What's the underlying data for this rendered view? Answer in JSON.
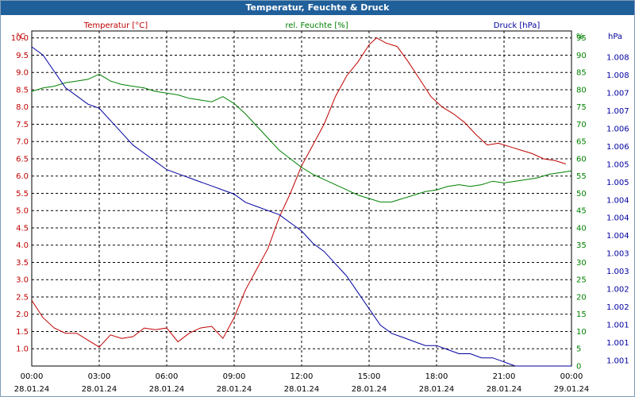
{
  "title": "Temperatur, Feuchte & Druck",
  "colors": {
    "title_bg": "#1f5f9a",
    "temperature": "#c00000",
    "humidity": "#008000",
    "pressure": "#0000a0",
    "grid": "#000000"
  },
  "axis_units": {
    "left": "°C",
    "right1": "%",
    "right2": "hPa"
  },
  "legend": {
    "temperature": "Temperatur [°C]",
    "humidity": "rel. Feuchte [%]",
    "pressure": "Druck [hPa]"
  },
  "chart_data": {
    "type": "line",
    "title": "Temperatur, Feuchte & Druck",
    "grid": true,
    "x_labels": [
      {
        "time": "00:00",
        "date": "28.01.24"
      },
      {
        "time": "03:00",
        "date": "28.01.24"
      },
      {
        "time": "06:00",
        "date": "28.01.24"
      },
      {
        "time": "09:00",
        "date": "28.01.24"
      },
      {
        "time": "12:00",
        "date": "28.01.24"
      },
      {
        "time": "15:00",
        "date": "28.01.24"
      },
      {
        "time": "18:00",
        "date": "28.01.24"
      },
      {
        "time": "21:00",
        "date": "28.01.24"
      },
      {
        "time": "00:00",
        "date": "29.01.24"
      }
    ],
    "x_range": [
      "28.01.24 00:00",
      "29.01.24 00:00"
    ],
    "y_left": {
      "unit": "°C",
      "range": [
        0.5,
        10.2
      ],
      "ticks": [
        "1.0",
        "1.5",
        "2.0",
        "2.5",
        "3.0",
        "3.5",
        "4.0",
        "4.5",
        "5.0",
        "5.5",
        "6.0",
        "6.5",
        "7.0",
        "7.5",
        "8.0",
        "8.5",
        "9.0",
        "9.5",
        "10.0"
      ]
    },
    "y_right1": {
      "unit": "%",
      "range": [
        0,
        97
      ],
      "ticks": [
        "0",
        "5",
        "10",
        "15",
        "20",
        "25",
        "30",
        "35",
        "40",
        "45",
        "50",
        "55",
        "60",
        "65",
        "70",
        "75",
        "80",
        "85",
        "90",
        "95",
        "%"
      ]
    },
    "y_right2": {
      "unit": "hPa",
      "ticks": [
        "1.001",
        "1.001",
        "1.001",
        "1.002",
        "1.002",
        "1.003",
        "1.003",
        "1.004",
        "1.004",
        "1.004",
        "1.005",
        "1.005",
        "1.006",
        "1.006",
        "1.007",
        "1.007",
        "1.008",
        "1.008"
      ]
    },
    "series": [
      {
        "name": "Temperatur [°C]",
        "axis": "left",
        "x": [
          "00:00",
          "00:30",
          "01:00",
          "01:30",
          "02:00",
          "02:30",
          "03:00",
          "03:30",
          "04:00",
          "04:30",
          "05:00",
          "05:30",
          "06:00",
          "06:30",
          "07:00",
          "07:30",
          "08:00",
          "08:30",
          "09:00",
          "09:30",
          "10:00",
          "10:30",
          "11:00",
          "11:30",
          "12:00",
          "12:30",
          "13:00",
          "13:30",
          "14:00",
          "14:30",
          "15:00",
          "15:20",
          "15:45",
          "16:15",
          "16:45",
          "17:15",
          "17:45",
          "18:15",
          "18:45",
          "19:15",
          "19:45",
          "20:15",
          "20:45",
          "21:15",
          "21:45",
          "22:15",
          "22:45",
          "23:15",
          "23:45"
        ],
        "values": [
          2.4,
          1.9,
          1.6,
          1.45,
          1.45,
          1.25,
          1.05,
          1.4,
          1.3,
          1.35,
          1.6,
          1.55,
          1.6,
          1.2,
          1.45,
          1.6,
          1.65,
          1.3,
          1.9,
          2.7,
          3.3,
          3.9,
          4.8,
          5.5,
          6.3,
          6.9,
          7.5,
          8.3,
          8.9,
          9.3,
          9.8,
          10.0,
          9.85,
          9.75,
          9.3,
          8.8,
          8.3,
          8.0,
          7.8,
          7.55,
          7.2,
          6.9,
          6.95,
          6.85,
          6.75,
          6.65,
          6.5,
          6.45,
          6.35
        ]
      },
      {
        "name": "rel. Feuchte [%]",
        "axis": "right1",
        "x": [
          "00:00",
          "00:30",
          "01:00",
          "01:30",
          "02:00",
          "02:30",
          "03:00",
          "03:30",
          "04:00",
          "04:30",
          "05:00",
          "05:30",
          "06:00",
          "06:30",
          "07:00",
          "07:30",
          "08:00",
          "08:30",
          "09:00",
          "09:30",
          "10:00",
          "10:30",
          "11:00",
          "11:30",
          "12:00",
          "12:30",
          "13:00",
          "13:30",
          "14:00",
          "14:30",
          "15:00",
          "15:30",
          "16:00",
          "16:30",
          "17:00",
          "17:30",
          "18:00",
          "18:30",
          "19:00",
          "19:30",
          "20:00",
          "20:30",
          "21:00",
          "21:30",
          "22:00",
          "22:30",
          "23:00",
          "23:30",
          "00:00"
        ],
        "values": [
          79.5,
          80.5,
          81,
          82,
          82.5,
          83,
          84.5,
          82.5,
          81.5,
          81,
          80.5,
          79.5,
          79,
          78.5,
          77.5,
          77,
          76.5,
          78,
          76,
          73,
          69.5,
          66,
          62.5,
          60,
          57.5,
          55.5,
          54,
          52.5,
          51,
          49.5,
          48.5,
          47.5,
          47.5,
          48.5,
          49.5,
          50.5,
          51,
          52,
          52.5,
          52,
          52.5,
          53.5,
          53,
          53.5,
          54,
          54.5,
          55.5,
          56,
          56.5
        ]
      },
      {
        "name": "Druck [hPa]",
        "axis": "right2",
        "x": [
          "00:00",
          "00:30",
          "01:00",
          "01:30",
          "02:00",
          "02:30",
          "03:00",
          "03:30",
          "04:00",
          "04:30",
          "05:00",
          "05:30",
          "06:00",
          "06:30",
          "07:00",
          "07:30",
          "08:00",
          "08:30",
          "09:00",
          "09:30",
          "10:00",
          "10:30",
          "11:00",
          "11:30",
          "12:00",
          "12:30",
          "13:00",
          "13:30",
          "14:00",
          "14:30",
          "15:00",
          "15:30",
          "16:00",
          "16:30",
          "17:00",
          "17:30",
          "18:00",
          "18:30",
          "19:00",
          "19:30",
          "20:00",
          "20:30",
          "21:00",
          "21:30",
          "22:00",
          "22:30",
          "23:00",
          "23:30",
          "00:00"
        ],
        "values": [
          1.0086,
          1.0084,
          1.008,
          1.0076,
          1.0074,
          1.0072,
          1.0071,
          1.0068,
          1.0065,
          1.0062,
          1.006,
          1.0058,
          1.0056,
          1.0055,
          1.0054,
          1.0053,
          1.0052,
          1.0051,
          1.005,
          1.0048,
          1.0047,
          1.0046,
          1.0045,
          1.0043,
          1.0041,
          1.0038,
          1.0036,
          1.0033,
          1.003,
          1.0026,
          1.0022,
          1.0018,
          1.0016,
          1.0015,
          1.0014,
          1.0013,
          1.0013,
          1.0012,
          1.0011,
          1.0011,
          1.001,
          1.001,
          1.0009,
          1.0008,
          1.0008,
          1.0008,
          1.0008,
          1.0008,
          1.0008
        ]
      }
    ]
  }
}
